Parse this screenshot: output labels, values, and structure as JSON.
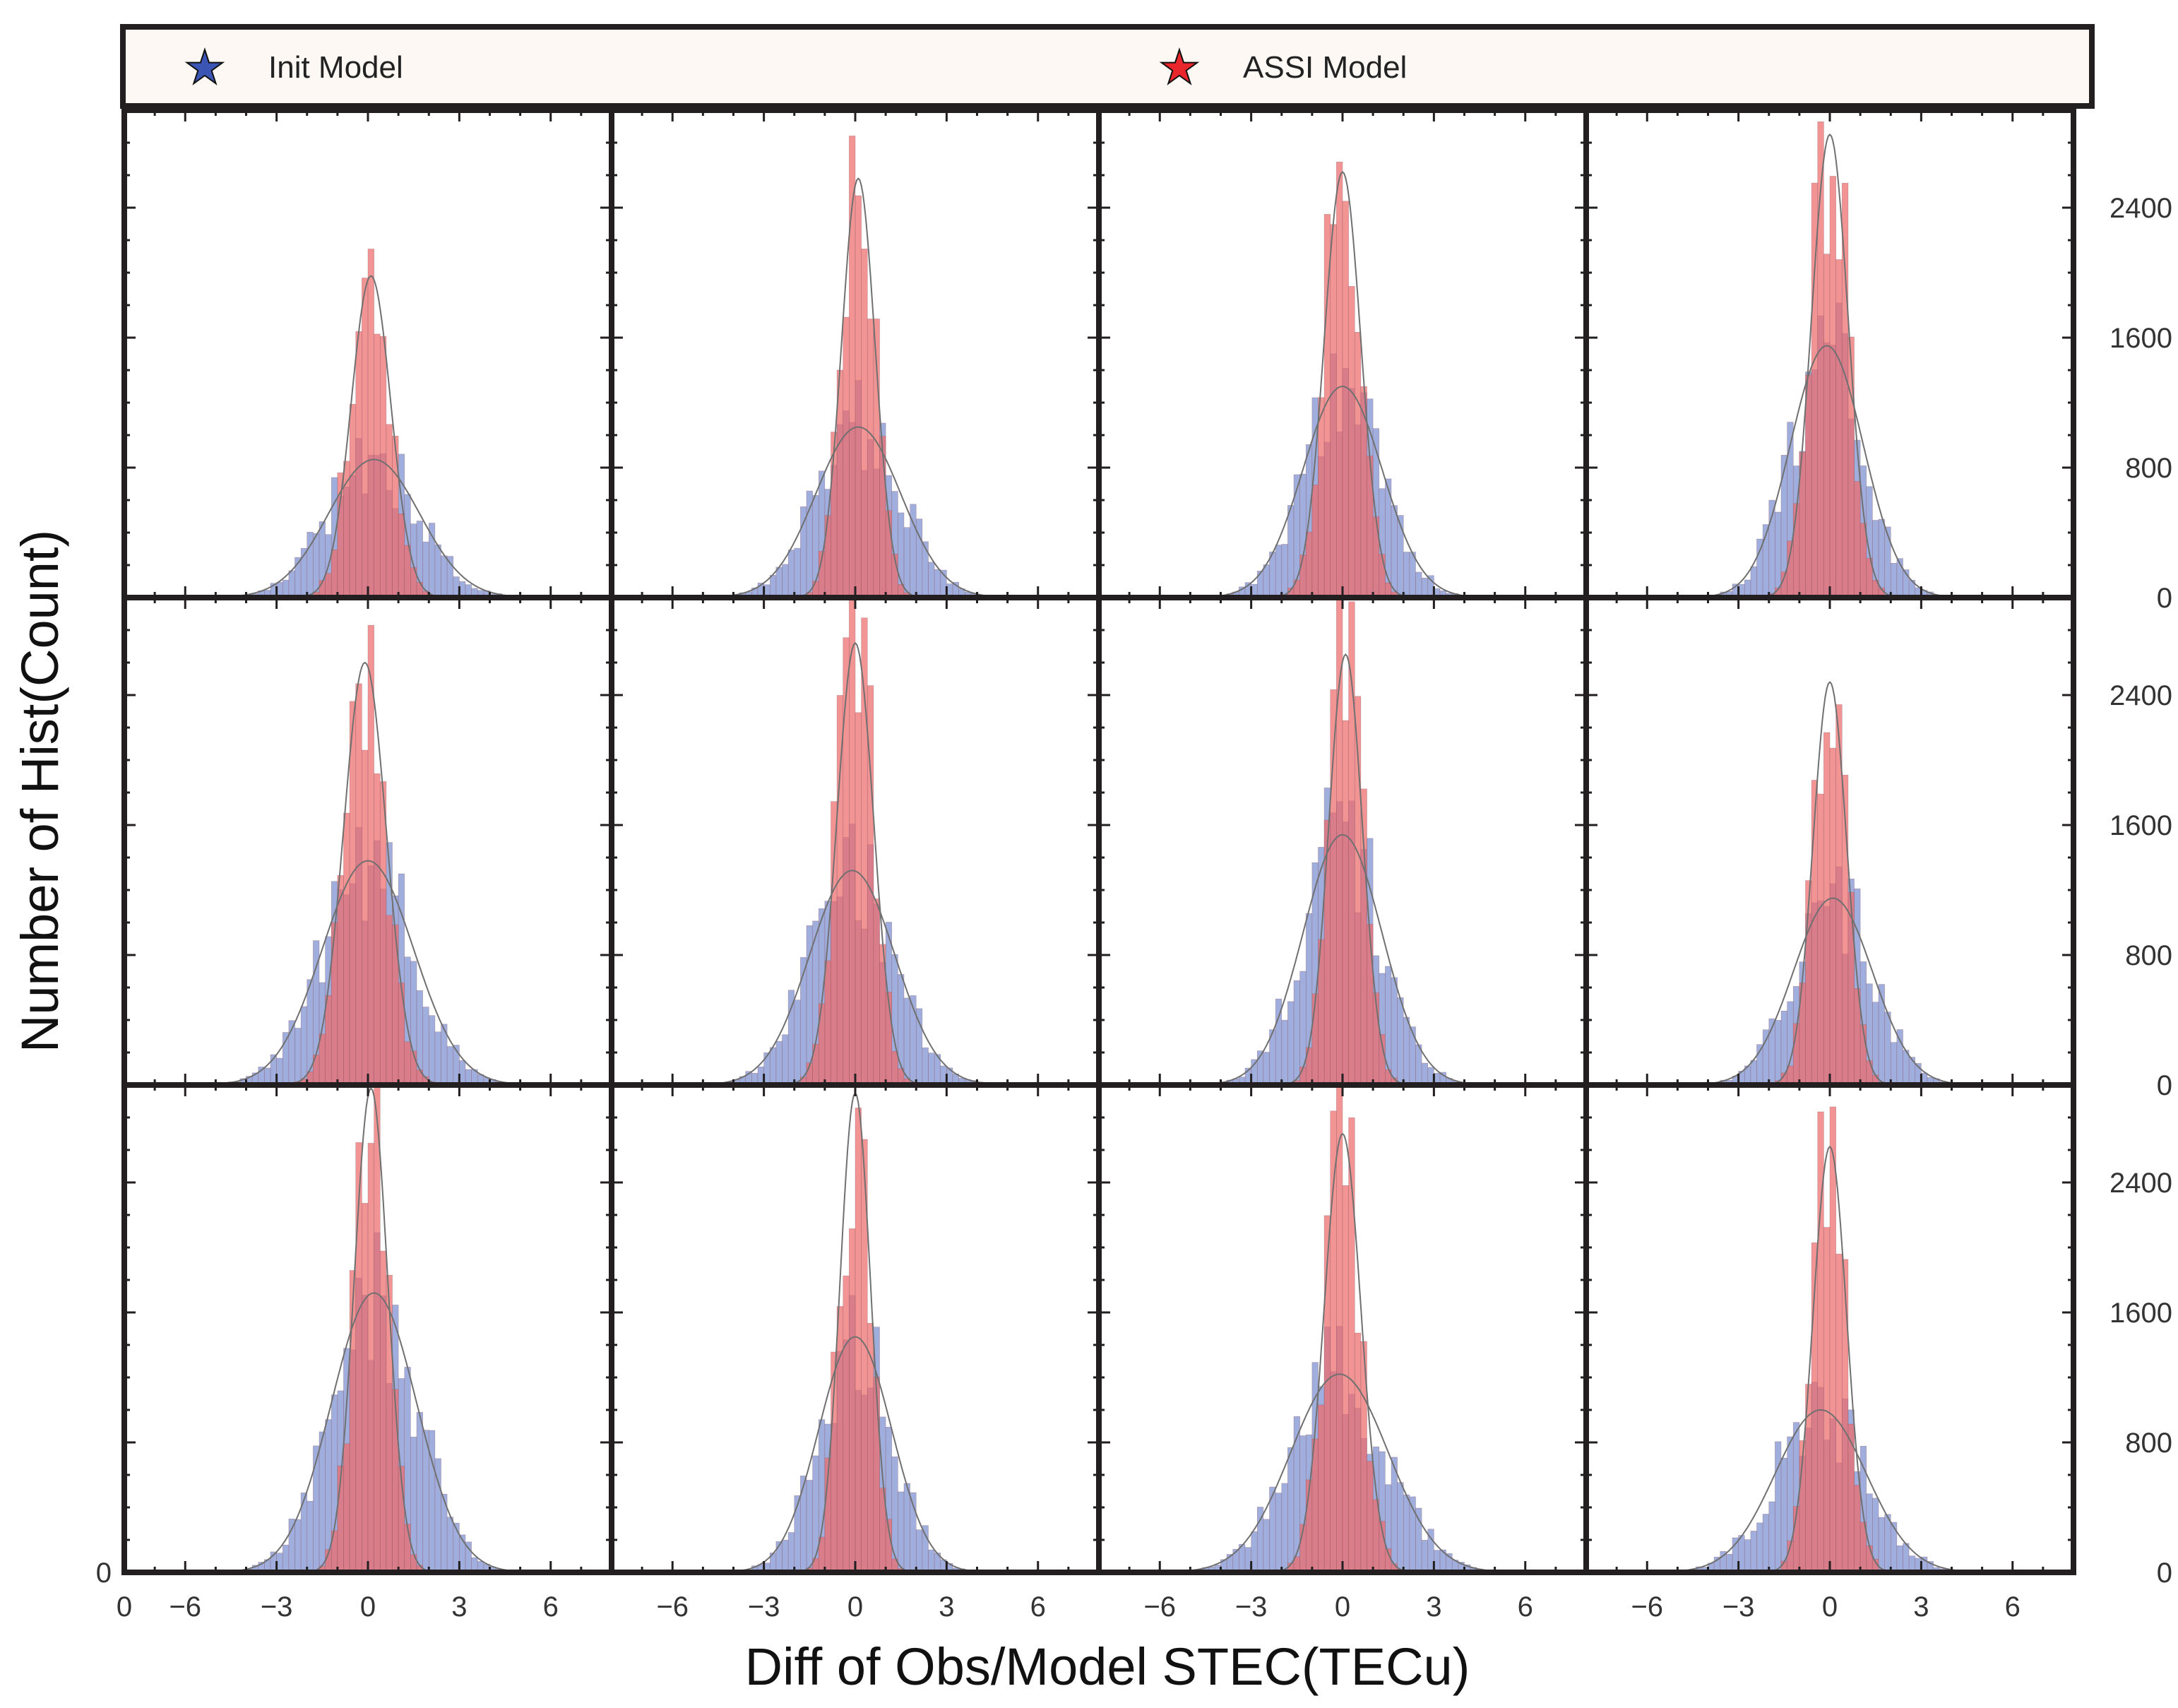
{
  "legend": {
    "entries": [
      {
        "label": "Init Model",
        "color": "#3a55b4",
        "marker": "star"
      },
      {
        "label": "ASSI Model",
        "color": "#e8262b",
        "marker": "star"
      }
    ]
  },
  "axis_labels": {
    "x": "Diff of Obs/Model STEC(TECu)",
    "y": "Number of Hist(Count)"
  },
  "chart_data": {
    "type": "histogram-grid",
    "rows": 3,
    "cols": 4,
    "xlabel": "Diff of Obs/Model STEC(TECu)",
    "ylabel": "Number of Hist(Count)",
    "xlim": [
      -8,
      8
    ],
    "ylim": [
      0,
      3000
    ],
    "xticks": [
      -6,
      -3,
      0,
      3,
      6
    ],
    "yticks": [
      0,
      800,
      1600,
      2400
    ],
    "x_origin_label": "0",
    "colors": {
      "init": "#7b8fd0",
      "assi": "#ef6b6b",
      "fit": "#707070",
      "frame": "#231f20"
    },
    "panels": [
      {
        "row": 0,
        "col": 0,
        "init_mu": 0.2,
        "init_sigma": 1.5,
        "init_peak": 850,
        "assi_mu": 0.1,
        "assi_sigma": 0.65,
        "assi_peak": 1980
      },
      {
        "row": 0,
        "col": 1,
        "init_mu": 0.1,
        "init_sigma": 1.4,
        "init_peak": 1050,
        "assi_mu": 0.1,
        "assi_sigma": 0.55,
        "assi_peak": 2580
      },
      {
        "row": 0,
        "col": 2,
        "init_mu": 0.0,
        "init_sigma": 1.3,
        "init_peak": 1300,
        "assi_mu": 0.0,
        "assi_sigma": 0.6,
        "assi_peak": 2620
      },
      {
        "row": 0,
        "col": 3,
        "init_mu": -0.1,
        "init_sigma": 1.2,
        "init_peak": 1550,
        "assi_mu": 0.0,
        "assi_sigma": 0.6,
        "assi_peak": 2850
      },
      {
        "row": 1,
        "col": 0,
        "init_mu": 0.0,
        "init_sigma": 1.5,
        "init_peak": 1380,
        "assi_mu": -0.1,
        "assi_sigma": 0.7,
        "assi_peak": 2600
      },
      {
        "row": 1,
        "col": 1,
        "init_mu": -0.1,
        "init_sigma": 1.4,
        "init_peak": 1320,
        "assi_mu": 0.0,
        "assi_sigma": 0.6,
        "assi_peak": 2720
      },
      {
        "row": 1,
        "col": 2,
        "init_mu": 0.0,
        "init_sigma": 1.3,
        "init_peak": 1540,
        "assi_mu": 0.1,
        "assi_sigma": 0.55,
        "assi_peak": 2650
      },
      {
        "row": 1,
        "col": 3,
        "init_mu": 0.1,
        "init_sigma": 1.3,
        "init_peak": 1150,
        "assi_mu": 0.0,
        "assi_sigma": 0.55,
        "assi_peak": 2480
      },
      {
        "row": 2,
        "col": 0,
        "init_mu": 0.2,
        "init_sigma": 1.4,
        "init_peak": 1720,
        "assi_mu": 0.1,
        "assi_sigma": 0.55,
        "assi_peak": 2980
      },
      {
        "row": 2,
        "col": 1,
        "init_mu": 0.0,
        "init_sigma": 1.2,
        "init_peak": 1450,
        "assi_mu": 0.0,
        "assi_sigma": 0.5,
        "assi_peak": 2950
      },
      {
        "row": 2,
        "col": 2,
        "init_mu": -0.1,
        "init_sigma": 1.6,
        "init_peak": 1220,
        "assi_mu": 0.0,
        "assi_sigma": 0.6,
        "assi_peak": 2700
      },
      {
        "row": 2,
        "col": 3,
        "init_mu": -0.3,
        "init_sigma": 1.5,
        "init_peak": 1000,
        "assi_mu": 0.0,
        "assi_sigma": 0.55,
        "assi_peak": 2620
      }
    ]
  }
}
